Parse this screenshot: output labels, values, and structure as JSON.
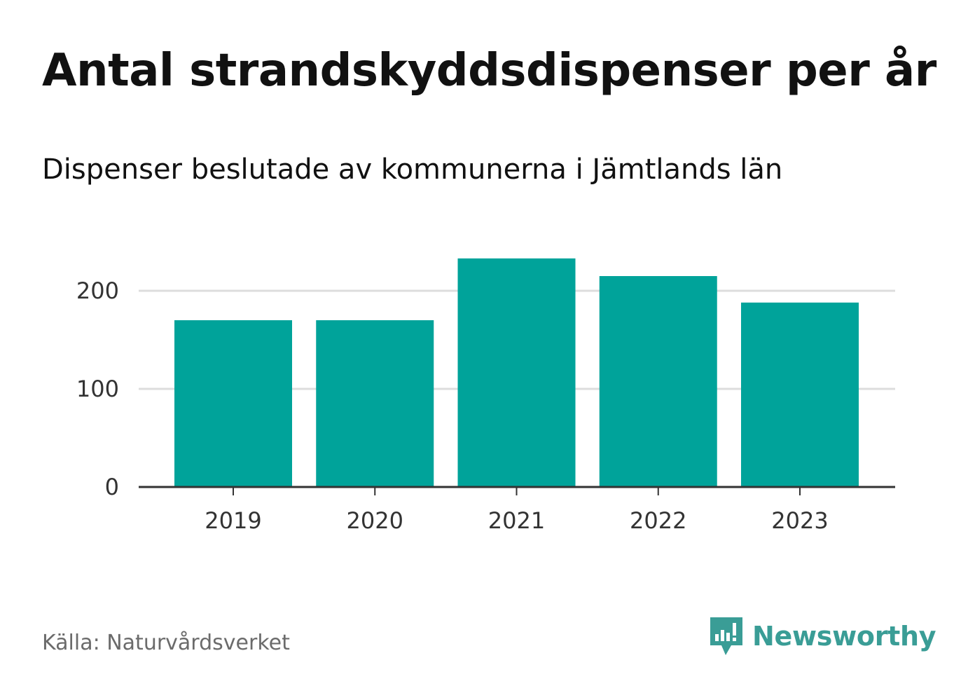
{
  "title": "Antal strandskyddsdispenser per år",
  "subtitle": "Dispenser beslutade av kommunerna i Jämtlands län",
  "source": "Källa: Naturvårdsverket",
  "brand": {
    "name": "Newsworthy",
    "icon": "newsworthy-logo-icon",
    "color": "#3a9d96"
  },
  "colors": {
    "bar": "#00a39a",
    "grid": "#dddddd",
    "axis": "#333333",
    "tick_text": "#333333"
  },
  "chart_data": {
    "type": "bar",
    "title": "Antal strandskyddsdispenser per år",
    "subtitle": "Dispenser beslutade av kommunerna i Jämtlands län",
    "xlabel": "",
    "ylabel": "",
    "categories": [
      "2019",
      "2020",
      "2021",
      "2022",
      "2023"
    ],
    "values": [
      170,
      170,
      233,
      215,
      188
    ],
    "ylim": [
      0,
      233
    ],
    "yticks": [
      0,
      100,
      200
    ],
    "ytick_labels": [
      "0",
      "100",
      "200"
    ],
    "grid": true,
    "legend": "none"
  }
}
